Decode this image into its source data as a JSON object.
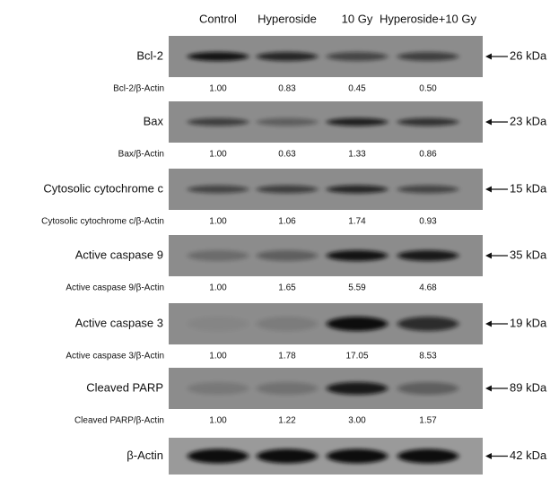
{
  "lanes": [
    "Control",
    "Hyperoside",
    "10 Gy",
    "Hyperoside+10 Gy"
  ],
  "blots": [
    {
      "label": "Bcl-2",
      "ratio_label": "Bcl-2/β-Actin",
      "ratios": [
        "1.00",
        "0.83",
        "0.45",
        "0.50"
      ],
      "size": "26 kDa"
    },
    {
      "label": "Bax",
      "ratio_label": "Bax/β-Actin",
      "ratios": [
        "1.00",
        "0.63",
        "1.33",
        "0.86"
      ],
      "size": "23 kDa"
    },
    {
      "label": "Cytosolic  cytochrome c",
      "ratio_label": "Cytosolic cytochrome c/β-Actin",
      "ratios": [
        "1.00",
        "1.06",
        "1.74",
        "0.93"
      ],
      "size": "15 kDa"
    },
    {
      "label": "Active caspase 9",
      "ratio_label": "Active caspase 9/β-Actin",
      "ratios": [
        "1.00",
        "1.65",
        "5.59",
        "4.68"
      ],
      "size": "35 kDa"
    },
    {
      "label": "Active caspase 3",
      "ratio_label": "Active caspase 3/β-Actin",
      "ratios": [
        "1.00",
        "1.78",
        "17.05",
        "8.53"
      ],
      "size": "19 kDa"
    },
    {
      "label": "Cleaved PARP",
      "ratio_label": "Cleaved PARP/β-Actin",
      "ratios": [
        "1.00",
        "1.22",
        "3.00",
        "1.57"
      ],
      "size": "89 kDa"
    },
    {
      "label": "β-Actin",
      "size": "42 kDa"
    }
  ]
}
